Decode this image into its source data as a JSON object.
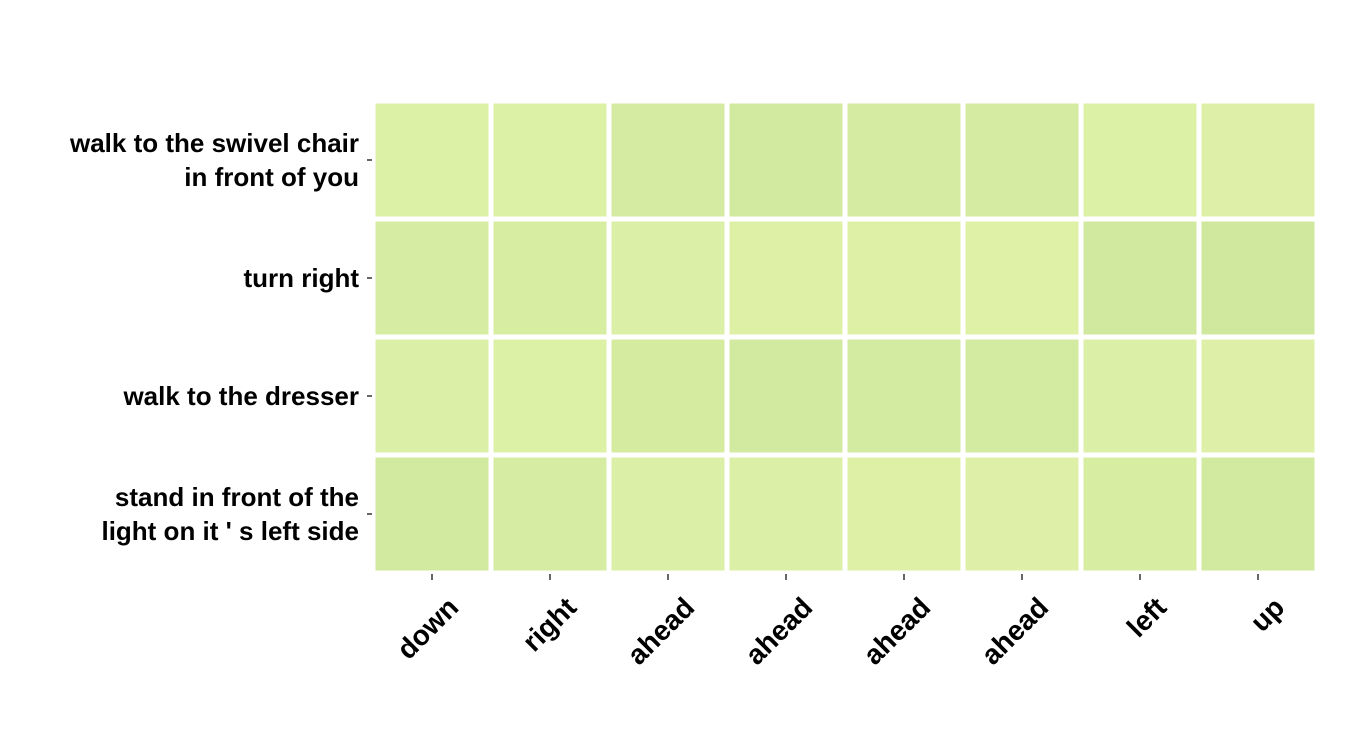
{
  "chart_data": {
    "type": "heatmap",
    "title": "",
    "xlabel": "",
    "ylabel": "",
    "grid": false,
    "legend": "none",
    "x_categories": [
      "down",
      "right",
      "ahead",
      "ahead",
      "ahead",
      "ahead",
      "left",
      "up"
    ],
    "y_categories": [
      [
        "walk to the swivel chair",
        "in front of you"
      ],
      [
        "turn right"
      ],
      [
        "walk to the dresser"
      ],
      [
        "stand in front of the",
        "light on it ' s left side"
      ]
    ],
    "values": [
      [
        0.2,
        0.2,
        0.45,
        0.52,
        0.45,
        0.45,
        0.2,
        0.15
      ],
      [
        0.42,
        0.38,
        0.22,
        0.18,
        0.18,
        0.14,
        0.58,
        0.62
      ],
      [
        0.22,
        0.2,
        0.48,
        0.55,
        0.5,
        0.5,
        0.22,
        0.15
      ],
      [
        0.52,
        0.4,
        0.22,
        0.22,
        0.18,
        0.15,
        0.38,
        0.55
      ]
    ],
    "value_range": [
      0,
      1
    ],
    "colormap": {
      "low": "#e2f3aa",
      "high": "#c4e296"
    },
    "cell_separator_color": "#ffffff"
  }
}
